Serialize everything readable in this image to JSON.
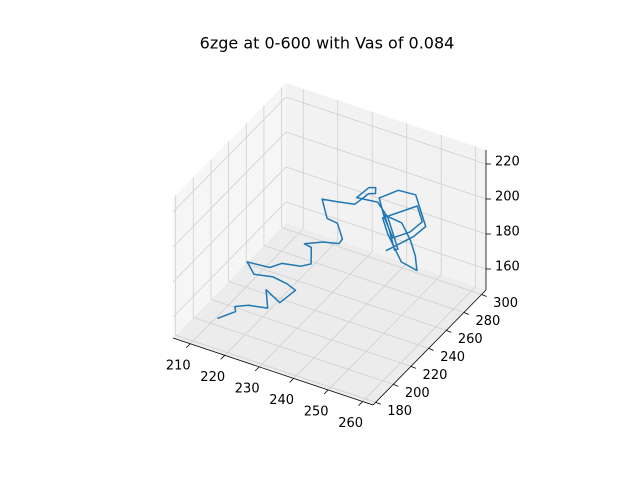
{
  "chart_data": {
    "type": "line3d",
    "title": "6zge at 0-600 with Vas of 0.084",
    "xlim": [
      205,
      263
    ],
    "ylim": [
      177,
      305
    ],
    "zlim": [
      148,
      228
    ],
    "xticks": [
      210,
      220,
      230,
      240,
      250,
      260
    ],
    "yticks": [
      180,
      200,
      220,
      240,
      260,
      280,
      300
    ],
    "zticks": [
      160,
      180,
      200,
      220
    ],
    "grid": true,
    "series": [
      {
        "color": "#1f77b4",
        "x": [
          212,
          216,
          214,
          219,
          223,
          221,
          226,
          229,
          225,
          222,
          218,
          215,
          220,
          224,
          228,
          232,
          230,
          227,
          233,
          236,
          238,
          235,
          231,
          228,
          233,
          237,
          240,
          243,
          241,
          238,
          236,
          240,
          244,
          247,
          250,
          248,
          245,
          242,
          246,
          250,
          253,
          255,
          252,
          249,
          246,
          243,
          247,
          251,
          254,
          252,
          248,
          244,
          241,
          245,
          249,
          252,
          255,
          253,
          250,
          247
        ],
        "y": [
          200,
          205,
          212,
          208,
          214,
          220,
          216,
          222,
          228,
          224,
          218,
          222,
          228,
          226,
          232,
          228,
          236,
          240,
          238,
          244,
          240,
          246,
          250,
          256,
          252,
          258,
          262,
          258,
          266,
          270,
          264,
          272,
          268,
          262,
          256,
          260,
          266,
          272,
          276,
          270,
          264,
          258,
          252,
          256,
          260,
          266,
          270,
          274,
          268,
          262,
          258,
          264,
          270,
          276,
          280,
          274,
          268,
          262,
          258,
          254
        ],
        "z": [
          152,
          156,
          154,
          160,
          158,
          164,
          162,
          168,
          166,
          170,
          172,
          175,
          172,
          178,
          176,
          182,
          186,
          184,
          190,
          188,
          194,
          198,
          196,
          202,
          206,
          204,
          210,
          214,
          212,
          208,
          204,
          200,
          196,
          192,
          188,
          184,
          190,
          194,
          190,
          186,
          182,
          178,
          184,
          188,
          192,
          196,
          200,
          204,
          200,
          196,
          192,
          198,
          204,
          208,
          206,
          202,
          198,
          194,
          190,
          186
        ]
      }
    ]
  }
}
